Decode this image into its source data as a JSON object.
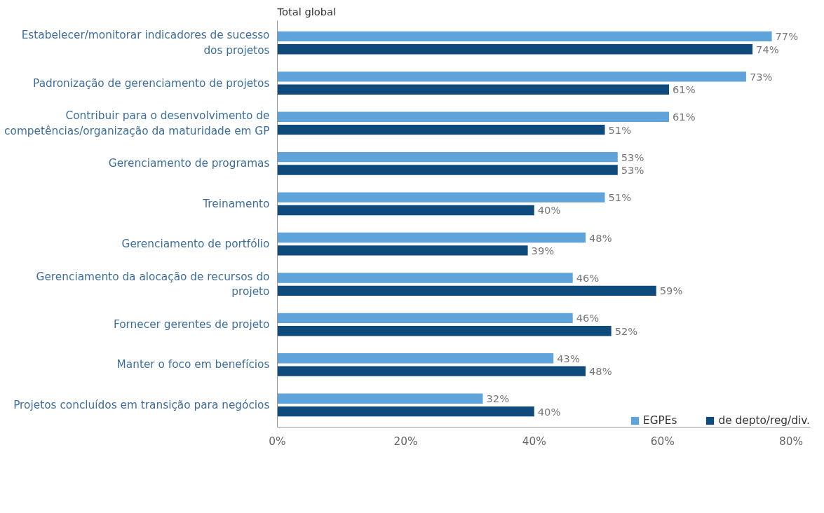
{
  "chart_data": {
    "type": "bar",
    "orientation": "horizontal",
    "title": "Total global",
    "categories": [
      "Estabelecer/monitorar indicadores de sucesso dos projetos",
      "Padronização de gerenciamento de projetos",
      "Contribuir para o desenvolvimento de competências/organização da maturidade em GP",
      "Gerenciamento de programas",
      "Treinamento",
      "Gerenciamento de portfólio",
      "Gerenciamento da alocação de recursos do projeto",
      "Fornecer gerentes de projeto",
      "Manter o foco em benefícios",
      "Projetos concluídos em transição para negócios"
    ],
    "series": [
      {
        "name": "EGPEs",
        "color": "#5ea3d9",
        "values": [
          77,
          73,
          61,
          53,
          51,
          48,
          46,
          46,
          43,
          32
        ],
        "value_labels": [
          "77%",
          "73%",
          "61%",
          "53%",
          "51%",
          "48%",
          "46%",
          "46%",
          "43%",
          "32%"
        ]
      },
      {
        "name": "de depto/reg/div.",
        "color": "#0f4a7c",
        "values": [
          74,
          61,
          51,
          53,
          40,
          39,
          59,
          52,
          48,
          40
        ],
        "value_labels": [
          "74%",
          "61%",
          "51%",
          "53%",
          "40%",
          "39%",
          "59%",
          "52%",
          "48%",
          "40%"
        ]
      }
    ],
    "xlim": [
      0,
      83
    ],
    "xticks": [
      {
        "value": 0,
        "label": "0%"
      },
      {
        "value": 20,
        "label": "20%"
      },
      {
        "value": 40,
        "label": "40%"
      },
      {
        "value": 60,
        "label": "60%"
      },
      {
        "value": 80,
        "label": "80%"
      }
    ],
    "grid": false,
    "legend": "bottom right"
  }
}
